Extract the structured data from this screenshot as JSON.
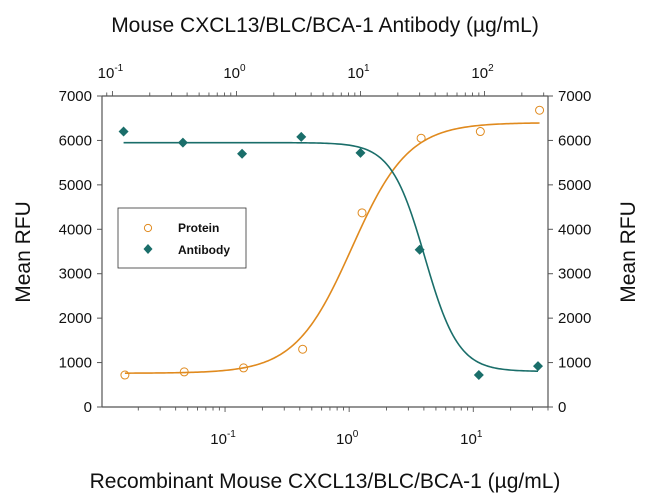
{
  "chart_data": {
    "type": "scatter",
    "title": "Mouse CXCL13/BLC/BCA-1 Antibody (µg/mL)",
    "xlabel": "Recombinant Mouse CXCL13/BLC/BCA-1 (µg/mL)",
    "ylabel": "Mean RFU",
    "ylabel_right": "Mean RFU",
    "x_scale": "log",
    "x_bottom_range": [
      0.0102,
      40
    ],
    "x_top_range": [
      0.0824,
      325
    ],
    "ylim": [
      0,
      7000
    ],
    "y_ticks": [
      0,
      1000,
      2000,
      3000,
      4000,
      5000,
      6000,
      7000
    ],
    "x_bottom_ticks": [
      {
        "base": "10",
        "exp": "-1",
        "value": 0.1
      },
      {
        "base": "10",
        "exp": "0",
        "value": 1
      },
      {
        "base": "10",
        "exp": "1",
        "value": 10
      }
    ],
    "x_top_ticks": [
      {
        "base": "10",
        "exp": "-1",
        "value": 0.1
      },
      {
        "base": "10",
        "exp": "0",
        "value": 1
      },
      {
        "base": "10",
        "exp": "1",
        "value": 10
      },
      {
        "base": "10",
        "exp": "2",
        "value": 100
      }
    ],
    "grid": false,
    "legend_position": "middle-left",
    "series": [
      {
        "name": "Protein",
        "axis": "bottom",
        "marker": "open-circle",
        "color": "#E08A1E",
        "x": [
          0.0156,
          0.0469,
          0.141,
          0.422,
          1.27,
          3.8,
          11.4,
          34.2
        ],
        "y": [
          720,
          790,
          880,
          1300,
          4370,
          6050,
          6200,
          6680
        ],
        "fit": {
          "model": "4PL",
          "bottom": 760,
          "top": 6400,
          "ec50": 1.05,
          "hill": 1.9
        }
      },
      {
        "name": "Antibody",
        "axis": "top",
        "marker": "filled-diamond",
        "color": "#1A6E6A",
        "x": [
          0.123,
          0.37,
          1.11,
          3.33,
          10,
          30,
          90,
          270
        ],
        "y": [
          6200,
          5950,
          5700,
          6080,
          5720,
          3540,
          720,
          920
        ],
        "fit": {
          "model": "4PL",
          "bottom": 800,
          "top": 5950,
          "ec50": 33,
          "hill": 3.2
        }
      }
    ]
  }
}
